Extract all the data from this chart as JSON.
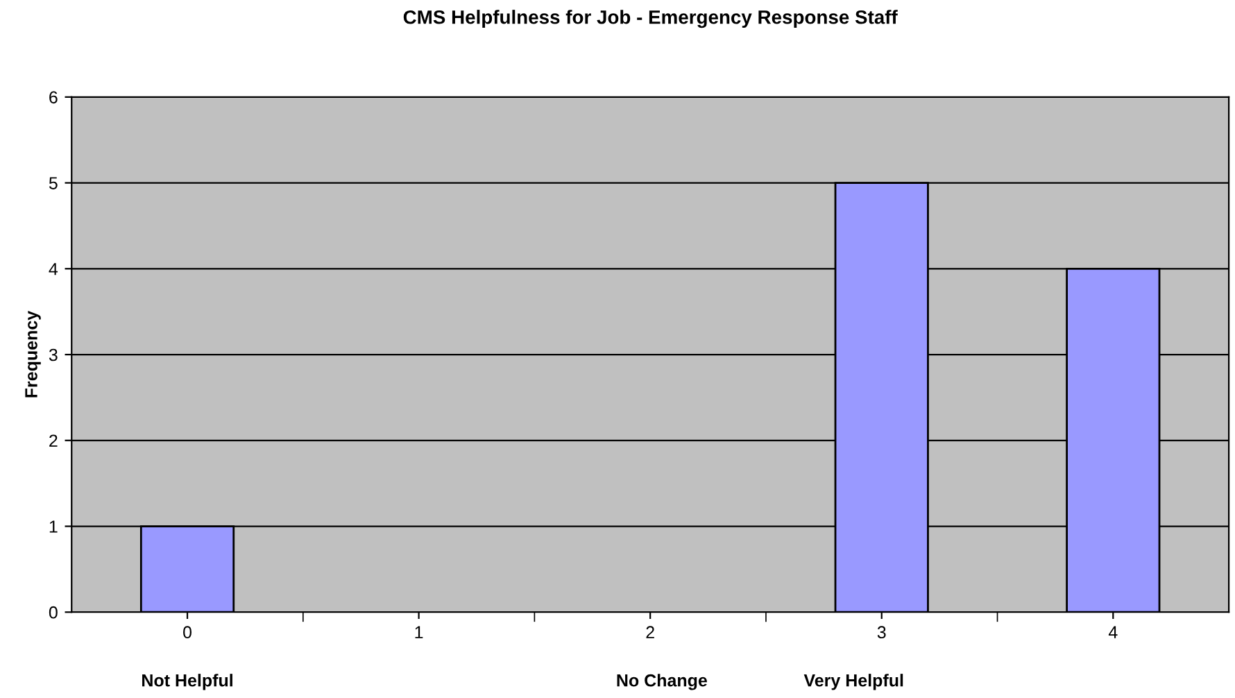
{
  "chart_data": {
    "type": "bar",
    "title": "CMS Helpfulness for Job - Emergency Response Staff",
    "ylabel": "Frequency",
    "categories": [
      "0",
      "1",
      "2",
      "3",
      "4"
    ],
    "values": [
      1,
      0,
      0,
      5,
      4
    ],
    "color": "#9999ff",
    "ylim": [
      0,
      6
    ],
    "yticks": [
      0,
      1,
      2,
      3,
      4,
      5,
      6
    ],
    "grid": "y",
    "legend": false,
    "annotations": [
      "Not Helpful",
      "No Change",
      "Very Helpful"
    ]
  }
}
